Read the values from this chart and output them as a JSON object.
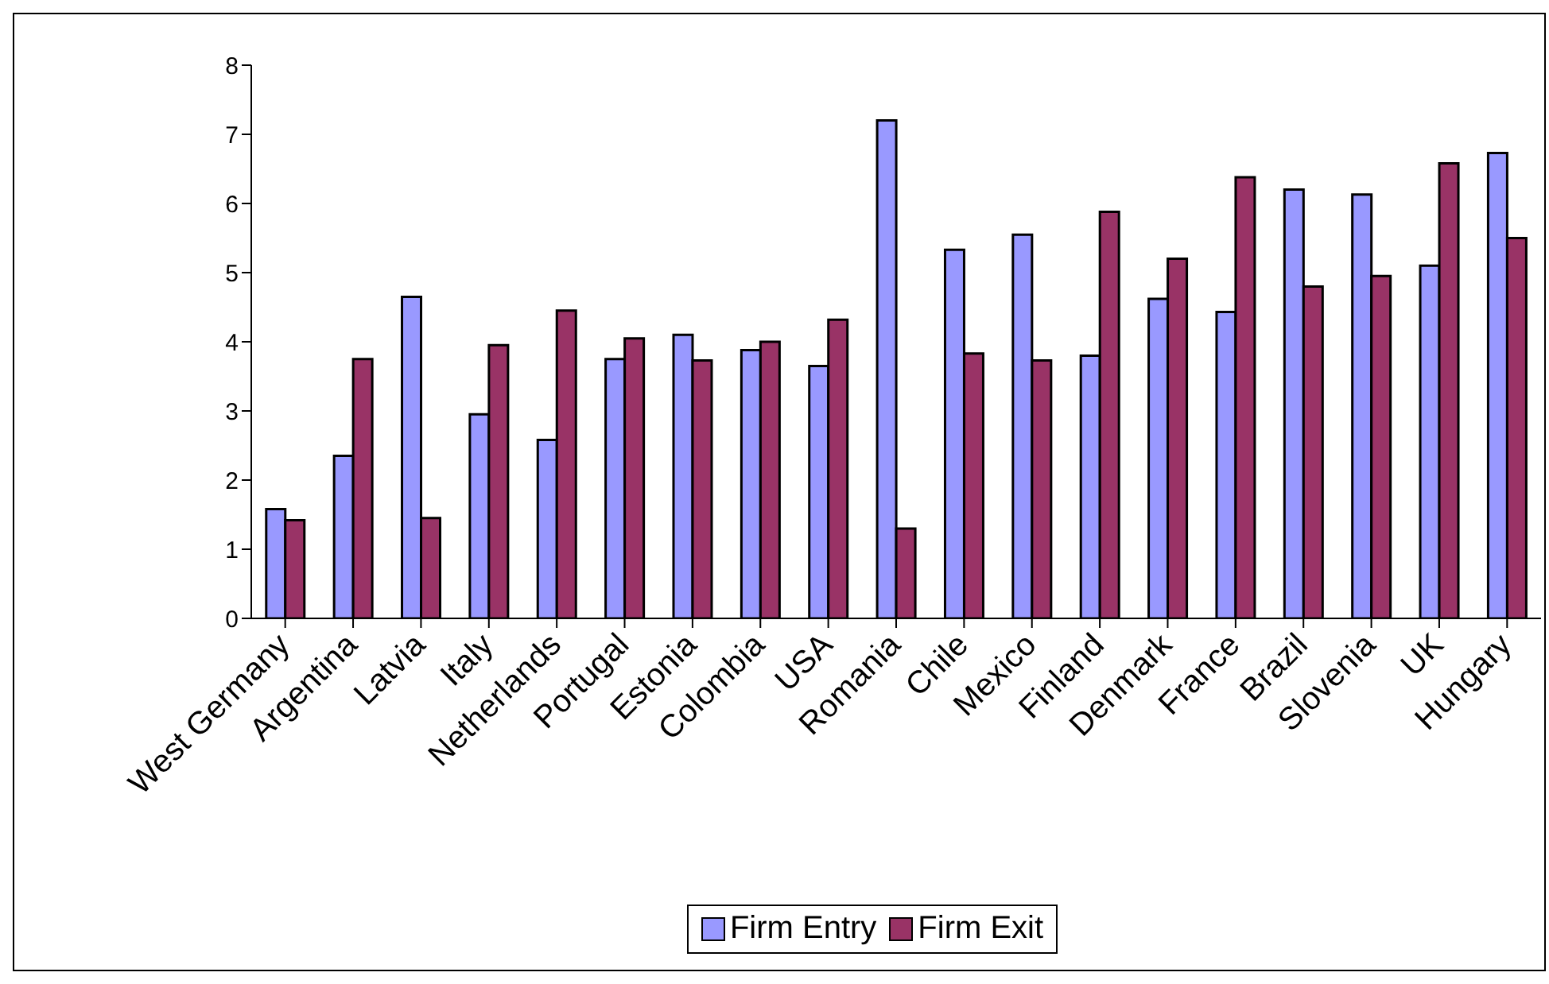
{
  "chart_data": {
    "type": "bar",
    "categories": [
      "West Germany",
      "Argentina",
      "Latvia",
      "Italy",
      "Netherlands",
      "Portugal",
      "Estonia",
      "Colombia",
      "USA",
      "Romania",
      "Chile",
      "Mexico",
      "Finland",
      "Denmark",
      "France",
      "Brazil",
      "Slovenia",
      "UK",
      "Hungary"
    ],
    "series": [
      {
        "name": "Firm Entry",
        "color": "#9999ff",
        "values": [
          1.58,
          2.35,
          4.65,
          2.95,
          2.58,
          3.75,
          4.1,
          3.88,
          3.65,
          7.2,
          5.33,
          5.55,
          3.8,
          4.62,
          4.43,
          6.2,
          6.13,
          5.1,
          6.73
        ]
      },
      {
        "name": "Firm Exit",
        "color": "#993366",
        "values": [
          1.42,
          3.75,
          1.45,
          3.95,
          4.45,
          4.05,
          3.73,
          4.0,
          4.32,
          1.3,
          3.83,
          3.73,
          5.88,
          5.2,
          6.38,
          4.8,
          4.95,
          6.58,
          5.5
        ]
      }
    ],
    "ylim": [
      0,
      8
    ],
    "yticks": [
      0,
      1,
      2,
      3,
      4,
      5,
      6,
      7,
      8
    ],
    "grid": false,
    "legend": "bottom"
  }
}
